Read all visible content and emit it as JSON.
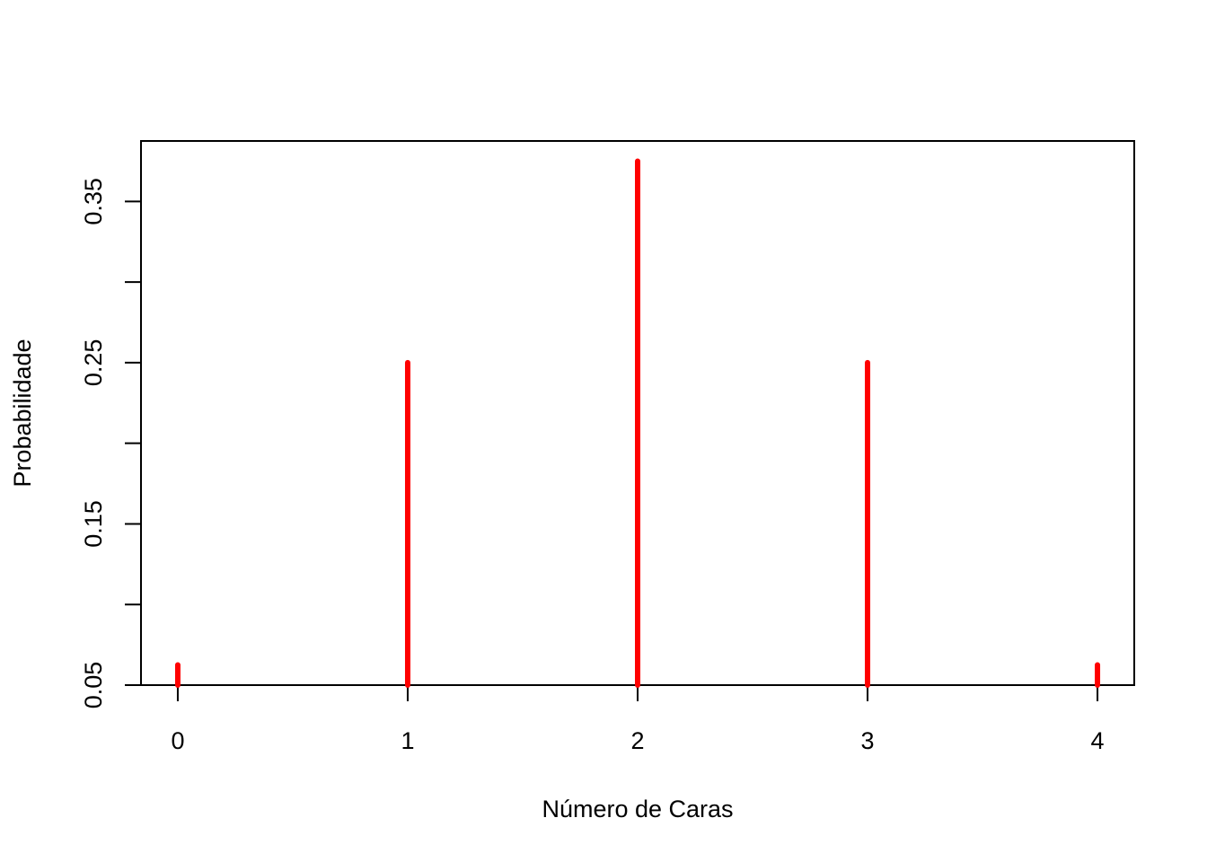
{
  "chart_data": {
    "type": "bar",
    "style": "stem",
    "title": "",
    "xlabel": "Número de Caras",
    "ylabel": "Probabilidade",
    "x": [
      0,
      1,
      2,
      3,
      4
    ],
    "values": [
      0.0625,
      0.25,
      0.375,
      0.25,
      0.0625
    ],
    "xlim": [
      -0.16,
      4.16
    ],
    "ylim": [
      0.05,
      0.3875
    ],
    "x_ticks": [
      0,
      1,
      2,
      3,
      4
    ],
    "x_tick_labels": [
      "0",
      "1",
      "2",
      "3",
      "4"
    ],
    "y_ticks": [
      0.05,
      0.1,
      0.15,
      0.2,
      0.25,
      0.3,
      0.35
    ],
    "y_tick_labels": [
      "0.05",
      "",
      "0.15",
      "",
      "0.25",
      "",
      "0.35"
    ],
    "grid": false,
    "legend": "none",
    "color": "#ff0000"
  }
}
